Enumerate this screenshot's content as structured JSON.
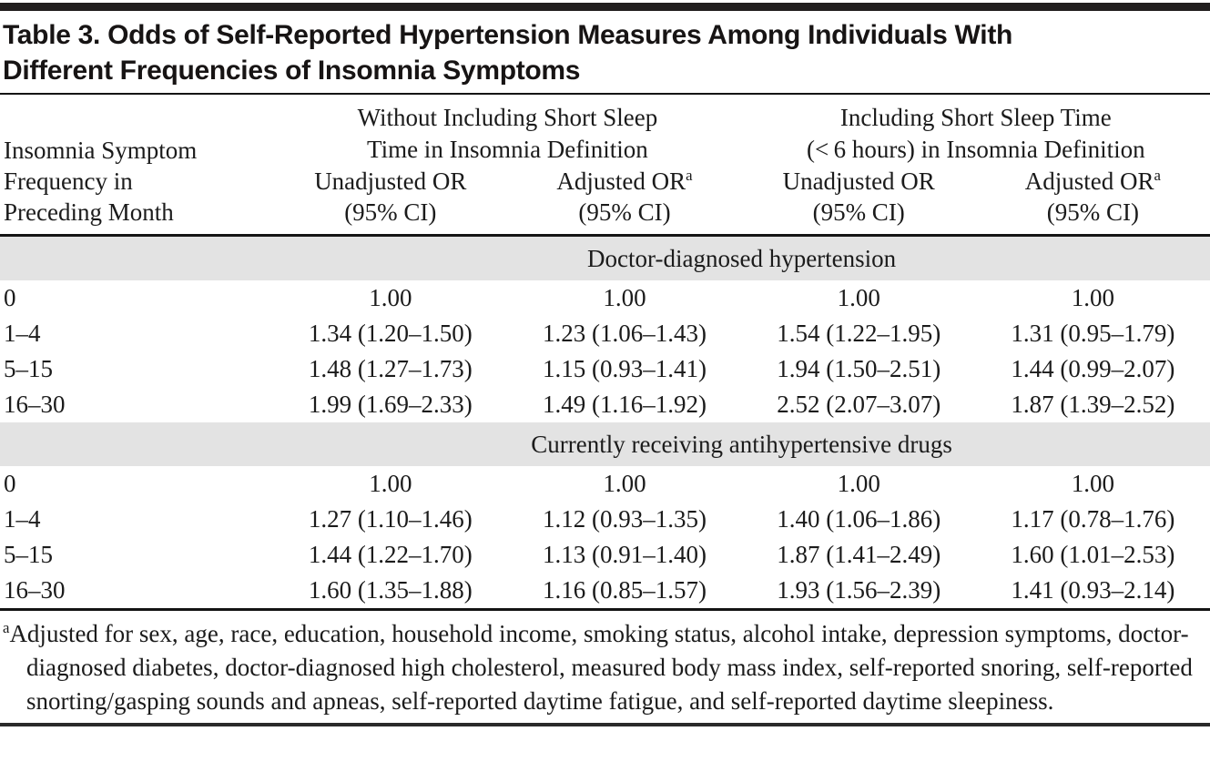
{
  "title": "Table 3. Odds of Self-Reported Hypertension Measures Among Individuals With Different Frequencies of Insomnia Symptoms",
  "colors": {
    "band_bg": "#e3e3e3",
    "rule": "#141414",
    "text": "#1b1b1b"
  },
  "table": {
    "stub_header": "Insomnia Symptom\nFrequency in\nPreceding Month",
    "groups": [
      {
        "label": "Without Including Short Sleep\nTime in Insomnia Definition"
      },
      {
        "label": "Including Short Sleep Time\n(< 6 hours) in Insomnia Definition"
      }
    ],
    "col_headers": [
      {
        "line1": "Unadjusted OR",
        "sup": "",
        "line2": "(95% CI)"
      },
      {
        "line1": "Adjusted OR",
        "sup": "a",
        "line2": "(95% CI)"
      },
      {
        "line1": "Unadjusted OR",
        "sup": "",
        "line2": "(95% CI)"
      },
      {
        "line1": "Adjusted OR",
        "sup": "a",
        "line2": "(95% CI)"
      }
    ],
    "sections": [
      {
        "band": "Doctor-diagnosed hypertension",
        "rows": [
          {
            "label": "0",
            "cells": [
              "1.00",
              "1.00",
              "1.00",
              "1.00"
            ]
          },
          {
            "label": "1–4",
            "cells": [
              "1.34 (1.20–1.50)",
              "1.23 (1.06–1.43)",
              "1.54 (1.22–1.95)",
              "1.31 (0.95–1.79)"
            ]
          },
          {
            "label": "5–15",
            "cells": [
              "1.48 (1.27–1.73)",
              "1.15 (0.93–1.41)",
              "1.94 (1.50–2.51)",
              "1.44 (0.99–2.07)"
            ]
          },
          {
            "label": "16–30",
            "cells": [
              "1.99 (1.69–2.33)",
              "1.49 (1.16–1.92)",
              "2.52 (2.07–3.07)",
              "1.87 (1.39–2.52)"
            ]
          }
        ]
      },
      {
        "band": "Currently receiving antihypertensive drugs",
        "rows": [
          {
            "label": "0",
            "cells": [
              "1.00",
              "1.00",
              "1.00",
              "1.00"
            ]
          },
          {
            "label": "1–4",
            "cells": [
              "1.27 (1.10–1.46)",
              "1.12 (0.93–1.35)",
              "1.40 (1.06–1.86)",
              "1.17 (0.78–1.76)"
            ]
          },
          {
            "label": "5–15",
            "cells": [
              "1.44 (1.22–1.70)",
              "1.13 (0.91–1.40)",
              "1.87 (1.41–2.49)",
              "1.60 (1.01–2.53)"
            ]
          },
          {
            "label": "16–30",
            "cells": [
              "1.60 (1.35–1.88)",
              "1.16 (0.85–1.57)",
              "1.93 (1.56–2.39)",
              "1.41 (0.93–2.14)"
            ]
          }
        ]
      }
    ]
  },
  "footnote": {
    "marker": "a",
    "text": "Adjusted for sex, age, race, education, household income, smoking status, alcohol intake, depression symptoms, doctor-diagnosed diabetes, doctor-diagnosed high cholesterol, measured body mass index, self-reported snoring, self-reported snorting/gasping sounds and apneas, self-reported daytime fatigue, and self-reported daytime sleepiness."
  }
}
